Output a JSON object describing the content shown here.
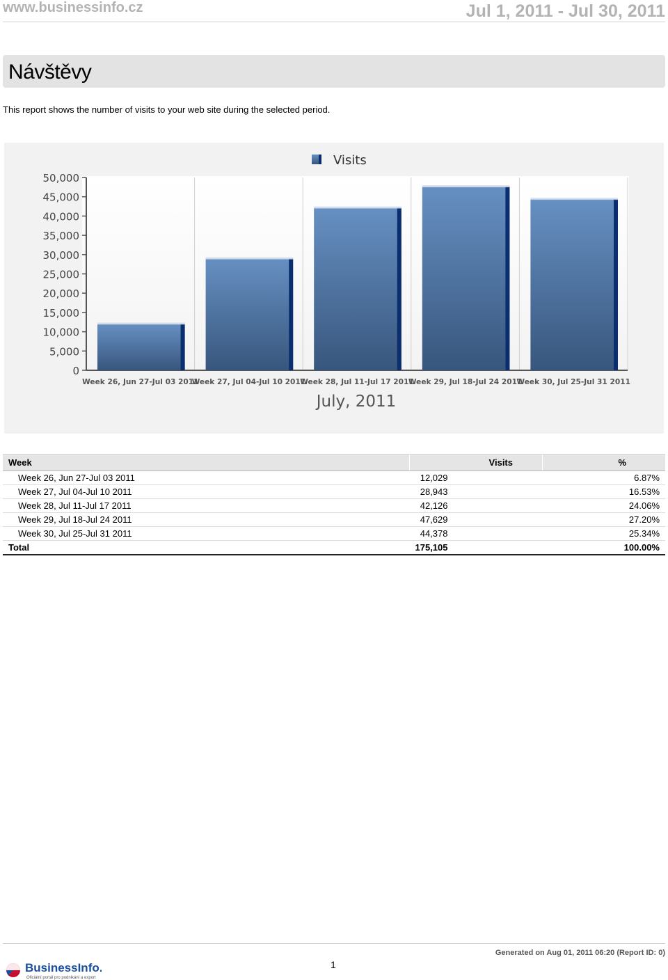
{
  "header": {
    "site": "www.businessinfo.cz",
    "date_range": "Jul 1, 2011 - Jul 30, 2011"
  },
  "report": {
    "title": "Návštěvy",
    "description": "This report shows the number of visits to your web site during the selected period."
  },
  "chart_data": {
    "type": "bar",
    "categories": [
      "Week 26, Jun 27-Jul 03 2011",
      "Week 27, Jul 04-Jul 10 2011",
      "Week 28, Jul 11-Jul 17 2011",
      "Week 29, Jul 18-Jul 24 2011",
      "Week 30, Jul 25-Jul 31 2011"
    ],
    "series": [
      {
        "name": "Visits",
        "values": [
          12029,
          28943,
          42126,
          47629,
          44378
        ]
      }
    ],
    "xlabel": "July, 2011",
    "ylabel": "",
    "ylim": [
      0,
      50000
    ],
    "yticks": [
      "0",
      "5,000",
      "10,000",
      "15,000",
      "20,000",
      "25,000",
      "30,000",
      "35,000",
      "40,000",
      "45,000",
      "50,000"
    ],
    "grid": true,
    "legend": "top-center",
    "colors": {
      "bar_top": "#6690c2",
      "bar_bottom": "#38567d",
      "bar_side": "#0b2f6e"
    }
  },
  "table": {
    "headers": {
      "week": "Week",
      "visits": "Visits",
      "pct": "%"
    },
    "rows": [
      {
        "week": "Week 26, Jun 27-Jul 03 2011",
        "visits": "12,029",
        "pct": "6.87%"
      },
      {
        "week": "Week 27, Jul 04-Jul 10 2011",
        "visits": "28,943",
        "pct": "16.53%"
      },
      {
        "week": "Week 28, Jul 11-Jul 17 2011",
        "visits": "42,126",
        "pct": "24.06%"
      },
      {
        "week": "Week 29, Jul 18-Jul 24 2011",
        "visits": "47,629",
        "pct": "27.20%"
      },
      {
        "week": "Week 30, Jul 25-Jul 31 2011",
        "visits": "44,378",
        "pct": "25.34%"
      }
    ],
    "total": {
      "label": "Total",
      "visits": "175,105",
      "pct": "100.00%"
    }
  },
  "footer": {
    "page_number": "1",
    "generated": "Generated on Aug 01, 2011 06:20 (Report ID: 0)",
    "logo_text": "BusinessInfo.cz",
    "logo_tagline": "Oficiální portál pro podnikání a export"
  }
}
